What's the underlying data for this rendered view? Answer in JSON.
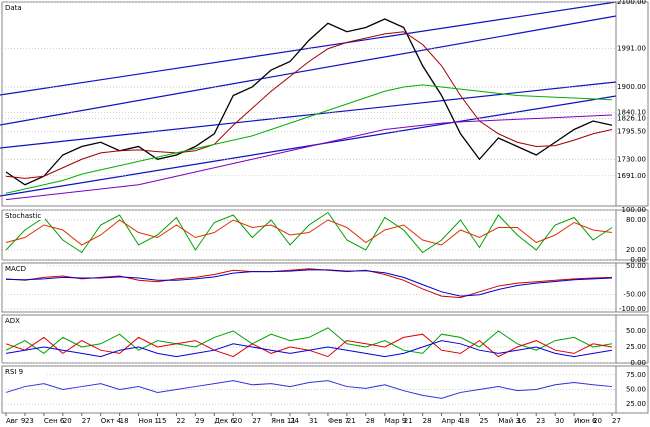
{
  "chart_data": [
    {
      "type": "line",
      "title": "Data",
      "ylim": [
        1620,
        2100
      ],
      "yticks": [
        {
          "value": 2100,
          "label": "2100.00"
        },
        {
          "value": 1991,
          "label": "1991.00"
        },
        {
          "value": 1900,
          "label": "1900.00"
        },
        {
          "value": 1840.1,
          "label": "1840.10"
        },
        {
          "value": 1826.1,
          "label": "1826.10"
        },
        {
          "value": 1795.5,
          "label": "1795.50"
        },
        {
          "value": 1730,
          "label": "1730.00"
        },
        {
          "value": 1691,
          "label": "1691.00"
        }
      ],
      "series": [
        {
          "color": "#000000",
          "values": [
            1700,
            1670,
            1690,
            1740,
            1760,
            1770,
            1750,
            1760,
            1730,
            1740,
            1760,
            1790,
            1880,
            1900,
            1940,
            1960,
            2010,
            2050,
            2030,
            2040,
            2060,
            2040,
            1950,
            1880,
            1790,
            1730,
            1780,
            1760,
            1740,
            1770,
            1800,
            1820,
            1810
          ]
        },
        {
          "color": "#a00000",
          "values": [
            1690,
            1685,
            1690,
            1710,
            1730,
            1745,
            1750,
            1752,
            1748,
            1745,
            1750,
            1765,
            1810,
            1850,
            1890,
            1925,
            1960,
            1990,
            2005,
            2015,
            2025,
            2030,
            2000,
            1950,
            1880,
            1820,
            1790,
            1770,
            1760,
            1762,
            1775,
            1790,
            1800
          ]
        },
        {
          "color": "#00b000",
          "values": [
            1650,
            1660,
            1670,
            1680,
            1695,
            1705,
            1715,
            1725,
            1735,
            1745,
            1755,
            1765,
            1775,
            1785,
            1800,
            1815,
            1830,
            1845,
            1860,
            1875,
            1890,
            1900,
            1905,
            1900,
            1895,
            1890,
            1885,
            1880,
            1878,
            1876,
            1874,
            1872,
            1870
          ]
        },
        {
          "color": "#8000c0",
          "values": [
            1635,
            1640,
            1645,
            1650,
            1655,
            1660,
            1665,
            1670,
            1680,
            1690,
            1700,
            1710,
            1720,
            1730,
            1740,
            1750,
            1760,
            1770,
            1780,
            1790,
            1800,
            1805,
            1810,
            1815,
            1818,
            1820,
            1822,
            1824,
            1826,
            1828,
            1830,
            1832,
            1834
          ]
        }
      ]
    },
    {
      "type": "line",
      "title": "Stochastic",
      "ylim": [
        0,
        100
      ],
      "yticks": [
        {
          "value": 100,
          "label": "100.00"
        },
        {
          "value": 80,
          "label": "80.00"
        },
        {
          "value": 20,
          "label": "20.00"
        },
        {
          "value": 0,
          "label": "0.00"
        }
      ],
      "series": [
        {
          "color": "#00a000",
          "values": [
            20,
            60,
            85,
            40,
            15,
            70,
            90,
            30,
            50,
            85,
            20,
            75,
            90,
            45,
            80,
            30,
            70,
            95,
            40,
            20,
            85,
            60,
            15,
            40,
            80,
            25,
            90,
            50,
            20,
            70,
            85,
            40,
            65
          ]
        },
        {
          "color": "#e03000",
          "values": [
            35,
            45,
            70,
            60,
            30,
            50,
            80,
            55,
            45,
            70,
            45,
            55,
            80,
            65,
            70,
            50,
            55,
            80,
            65,
            35,
            60,
            70,
            40,
            30,
            60,
            45,
            65,
            65,
            35,
            50,
            75,
            60,
            55
          ]
        }
      ]
    },
    {
      "type": "line",
      "title": "MACD",
      "ylim": [
        -110,
        60
      ],
      "yticks": [
        {
          "value": 50,
          "label": "50.00"
        },
        {
          "value": -50,
          "label": "-50.00"
        },
        {
          "value": -100,
          "label": "-100.00"
        }
      ],
      "series": [
        {
          "color": "#d00000",
          "values": [
            5,
            0,
            10,
            15,
            5,
            10,
            15,
            0,
            -5,
            5,
            10,
            20,
            35,
            30,
            30,
            35,
            40,
            35,
            30,
            35,
            20,
            0,
            -30,
            -55,
            -60,
            -40,
            -20,
            -10,
            -5,
            0,
            5,
            8,
            10
          ]
        },
        {
          "color": "#0000d0",
          "values": [
            3,
            2,
            5,
            10,
            8,
            8,
            12,
            8,
            0,
            0,
            5,
            12,
            25,
            30,
            30,
            32,
            36,
            36,
            32,
            33,
            26,
            10,
            -15,
            -40,
            -55,
            -50,
            -32,
            -18,
            -10,
            -4,
            2,
            5,
            8
          ]
        }
      ]
    },
    {
      "type": "line",
      "title": "ADX",
      "ylim": [
        0,
        75
      ],
      "yticks": [
        {
          "value": 50,
          "label": "50.00"
        },
        {
          "value": 25,
          "label": "25.00"
        },
        {
          "value": 0,
          "label": "0.00"
        }
      ],
      "series": [
        {
          "color": "#00a000",
          "values": [
            20,
            35,
            15,
            40,
            25,
            30,
            45,
            20,
            35,
            30,
            25,
            40,
            50,
            30,
            45,
            35,
            40,
            55,
            30,
            25,
            35,
            20,
            15,
            45,
            40,
            25,
            50,
            30,
            20,
            35,
            40,
            25,
            30
          ]
        },
        {
          "color": "#e00000",
          "values": [
            30,
            20,
            40,
            15,
            35,
            20,
            15,
            40,
            25,
            30,
            35,
            20,
            10,
            30,
            15,
            25,
            20,
            10,
            35,
            30,
            25,
            40,
            45,
            20,
            15,
            35,
            10,
            25,
            35,
            20,
            15,
            30,
            25
          ]
        },
        {
          "color": "#0000e0",
          "values": [
            15,
            20,
            25,
            20,
            15,
            10,
            20,
            25,
            15,
            10,
            15,
            20,
            30,
            25,
            20,
            15,
            20,
            25,
            20,
            15,
            10,
            15,
            25,
            35,
            30,
            20,
            15,
            20,
            25,
            15,
            10,
            15,
            20
          ]
        }
      ]
    },
    {
      "type": "line",
      "title": "RSI 9",
      "ylim": [
        10,
        90
      ],
      "yticks": [
        {
          "value": 75,
          "label": "75.00"
        },
        {
          "value": 50,
          "label": "50.00"
        },
        {
          "value": 25,
          "label": "25.00"
        }
      ],
      "categories": [
        "Авг 9",
        "23",
        "Сен 6",
        "20",
        "27",
        "Окт 4",
        "18",
        "Ноя 1",
        "15",
        "22",
        "29",
        "Дек 6",
        "20",
        "27",
        "Янв 11",
        "24",
        "31",
        "Фев 7",
        "21",
        "28",
        "Мар 9",
        "21",
        "28",
        "Апр 4",
        "18",
        "25",
        "Май 3",
        "16",
        "23",
        "30",
        "Июн 6",
        "20",
        "27"
      ],
      "series": [
        {
          "color": "#3030e0",
          "values": [
            45,
            55,
            60,
            50,
            55,
            60,
            50,
            55,
            45,
            50,
            55,
            60,
            65,
            58,
            60,
            55,
            62,
            65,
            55,
            52,
            58,
            48,
            40,
            35,
            45,
            50,
            55,
            48,
            50,
            58,
            62,
            58,
            55
          ]
        }
      ]
    }
  ]
}
